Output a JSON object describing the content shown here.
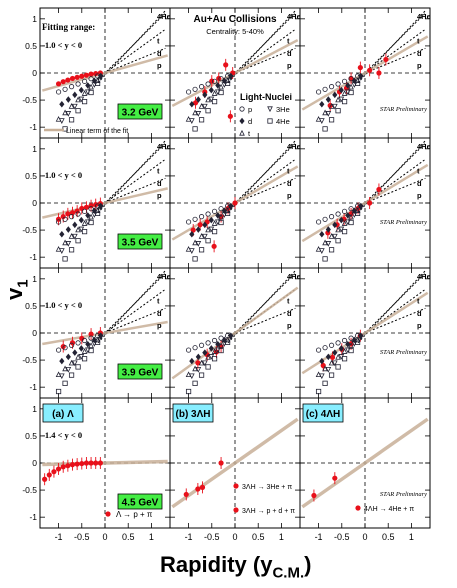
{
  "figure": {
    "ylabel_main": "v",
    "ylabel_sub": "1",
    "xlabel_main": "Rapidity (y",
    "xlabel_sub": "C.M.",
    "xlabel_close": ")",
    "collision_title": "Au+Au Collisions",
    "centrality": "Centrality: 5-40%",
    "fitting_range_label": "Fitting range:",
    "fitting_range_1": "-1.0 < y < 0",
    "fitting_range_2": "-1.4 < y < 0",
    "preliminary": "STAR Preliminary",
    "fit_legend": "Linear term of the fit",
    "light_nuclei_title": "Light-Nuclei",
    "ln_legend": [
      {
        "sym": "circle",
        "text": "p"
      },
      {
        "sym": "tri-down",
        "text": "3He"
      },
      {
        "sym": "diamond",
        "text": "d"
      },
      {
        "sym": "square",
        "text": "4He"
      },
      {
        "sym": "tri-up",
        "text": "t"
      }
    ],
    "species_labels": [
      "4He",
      "3He",
      "t",
      "d",
      "p"
    ],
    "energies": [
      "3.2 GeV",
      "3.5 GeV",
      "3.9 GeV",
      "4.5 GeV"
    ],
    "bottom_labels": [
      "(a) Λ",
      "(b) 3ΛH",
      "(c) 4ΛH"
    ],
    "decay_a": "Λ → p + π",
    "decay_b1": "3ΛH → 3He + π",
    "decay_b2": "3ΛH → p + d + π",
    "decay_c": "4ΛH → 4He + π",
    "colors": {
      "data": "#e8101a",
      "fit": "#c8b098",
      "energy_box": "#44ee44",
      "hyper_box": "#88eeff"
    }
  },
  "chart_data": {
    "type": "scatter",
    "x_ticks": [
      "-1",
      "-0.5",
      "0",
      "0.5",
      "1"
    ],
    "y_ticks": [
      "-1",
      "-0.5",
      "0",
      "0.5",
      "1"
    ],
    "xlim": [
      -1.4,
      1.4
    ],
    "ylim": [
      -1.2,
      1.2
    ],
    "grid_rows": 4,
    "grid_cols": 3,
    "light_nuclei_slopes": {
      "p": 0.35,
      "d": 0.62,
      "t": 0.85,
      "3He": 0.95,
      "4He": 1.2
    },
    "panels": [
      {
        "row": 0,
        "col": 0,
        "fit_slope": 0.24,
        "points": [
          [
            -1.0,
            -0.2
          ],
          [
            -0.9,
            -0.16
          ],
          [
            -0.8,
            -0.13
          ],
          [
            -0.7,
            -0.1
          ],
          [
            -0.6,
            -0.08
          ],
          [
            -0.5,
            -0.06
          ],
          [
            -0.4,
            -0.04
          ],
          [
            -0.3,
            -0.02
          ],
          [
            -0.2,
            -0.01
          ],
          [
            -0.1,
            0.0
          ]
        ]
      },
      {
        "row": 0,
        "col": 1,
        "fit_slope": 0.45,
        "points": [
          [
            -0.85,
            -0.55
          ],
          [
            -0.65,
            -0.35
          ],
          [
            -0.5,
            -0.15
          ],
          [
            -0.35,
            -0.1
          ],
          [
            -0.2,
            0.15
          ],
          [
            -0.1,
            -0.8
          ],
          [
            -0.05,
            0.0
          ]
        ]
      },
      {
        "row": 0,
        "col": 2,
        "fit_slope": 0.5,
        "points": [
          [
            -0.75,
            -0.6
          ],
          [
            -0.55,
            -0.35
          ],
          [
            -0.4,
            -0.28
          ],
          [
            -0.3,
            -0.1
          ],
          [
            -0.1,
            0.1
          ],
          [
            0.1,
            0.05
          ],
          [
            0.3,
            0.0
          ],
          [
            0.45,
            0.25
          ]
        ]
      },
      {
        "row": 1,
        "col": 0,
        "fit_slope": 0.2,
        "points": [
          [
            -1.0,
            -0.3
          ],
          [
            -0.9,
            -0.25
          ],
          [
            -0.8,
            -0.2
          ],
          [
            -0.7,
            -0.18
          ],
          [
            -0.6,
            -0.15
          ],
          [
            -0.5,
            -0.1
          ],
          [
            -0.4,
            -0.08
          ],
          [
            -0.3,
            -0.05
          ],
          [
            -0.2,
            -0.03
          ],
          [
            -0.1,
            -0.01
          ]
        ]
      },
      {
        "row": 1,
        "col": 1,
        "fit_slope": 0.5,
        "points": [
          [
            -0.9,
            -0.5
          ],
          [
            -0.75,
            -0.4
          ],
          [
            -0.6,
            -0.35
          ],
          [
            -0.45,
            -0.8
          ],
          [
            -0.3,
            -0.25
          ],
          [
            -0.15,
            -0.1
          ],
          [
            0.0,
            0.0
          ]
        ]
      },
      {
        "row": 1,
        "col": 2,
        "fit_slope": 0.52,
        "points": [
          [
            -0.8,
            -0.55
          ],
          [
            -0.6,
            -0.4
          ],
          [
            -0.45,
            -0.3
          ],
          [
            -0.3,
            -0.2
          ],
          [
            -0.15,
            -0.1
          ],
          [
            0.1,
            0.0
          ],
          [
            0.3,
            0.25
          ]
        ]
      },
      {
        "row": 2,
        "col": 0,
        "fit_slope": 0.15,
        "points": [
          [
            -0.9,
            -0.25
          ],
          [
            -0.7,
            -0.18
          ],
          [
            -0.5,
            -0.1
          ],
          [
            -0.3,
            -0.02
          ],
          [
            -0.1,
            0.0
          ]
        ]
      },
      {
        "row": 2,
        "col": 1,
        "fit_slope": 0.62,
        "points": [
          [
            -0.8,
            -0.55
          ],
          [
            -0.6,
            -0.4
          ],
          [
            -0.4,
            -0.35
          ],
          [
            -0.3,
            -0.25
          ]
        ]
      },
      {
        "row": 2,
        "col": 2,
        "fit_slope": 0.55,
        "points": [
          [
            -0.9,
            -0.6
          ],
          [
            -0.7,
            -0.45
          ],
          [
            -0.5,
            -0.3
          ],
          [
            -0.3,
            -0.2
          ],
          [
            -0.1,
            -0.05
          ]
        ]
      },
      {
        "row": 3,
        "col": 0,
        "fit_slope": 0.02,
        "points": [
          [
            -1.3,
            -0.3
          ],
          [
            -1.2,
            -0.22
          ],
          [
            -1.1,
            -0.16
          ],
          [
            -1.0,
            -0.11
          ],
          [
            -0.9,
            -0.07
          ],
          [
            -0.8,
            -0.05
          ],
          [
            -0.7,
            -0.03
          ],
          [
            -0.6,
            -0.02
          ],
          [
            -0.5,
            -0.01
          ],
          [
            -0.4,
            0.0
          ],
          [
            -0.3,
            0.0
          ],
          [
            -0.2,
            0.0
          ],
          [
            -0.1,
            0.0
          ]
        ]
      },
      {
        "row": 3,
        "col": 1,
        "fit_slope": 0.6,
        "points": [
          [
            -1.05,
            -0.58
          ],
          [
            -0.8,
            -0.48
          ],
          [
            -0.7,
            -0.45
          ],
          [
            -0.3,
            0.0
          ]
        ]
      },
      {
        "row": 3,
        "col": 2,
        "fit_slope": 0.6,
        "points": [
          [
            -1.1,
            -0.6
          ],
          [
            -0.65,
            -0.28
          ]
        ]
      }
    ]
  }
}
